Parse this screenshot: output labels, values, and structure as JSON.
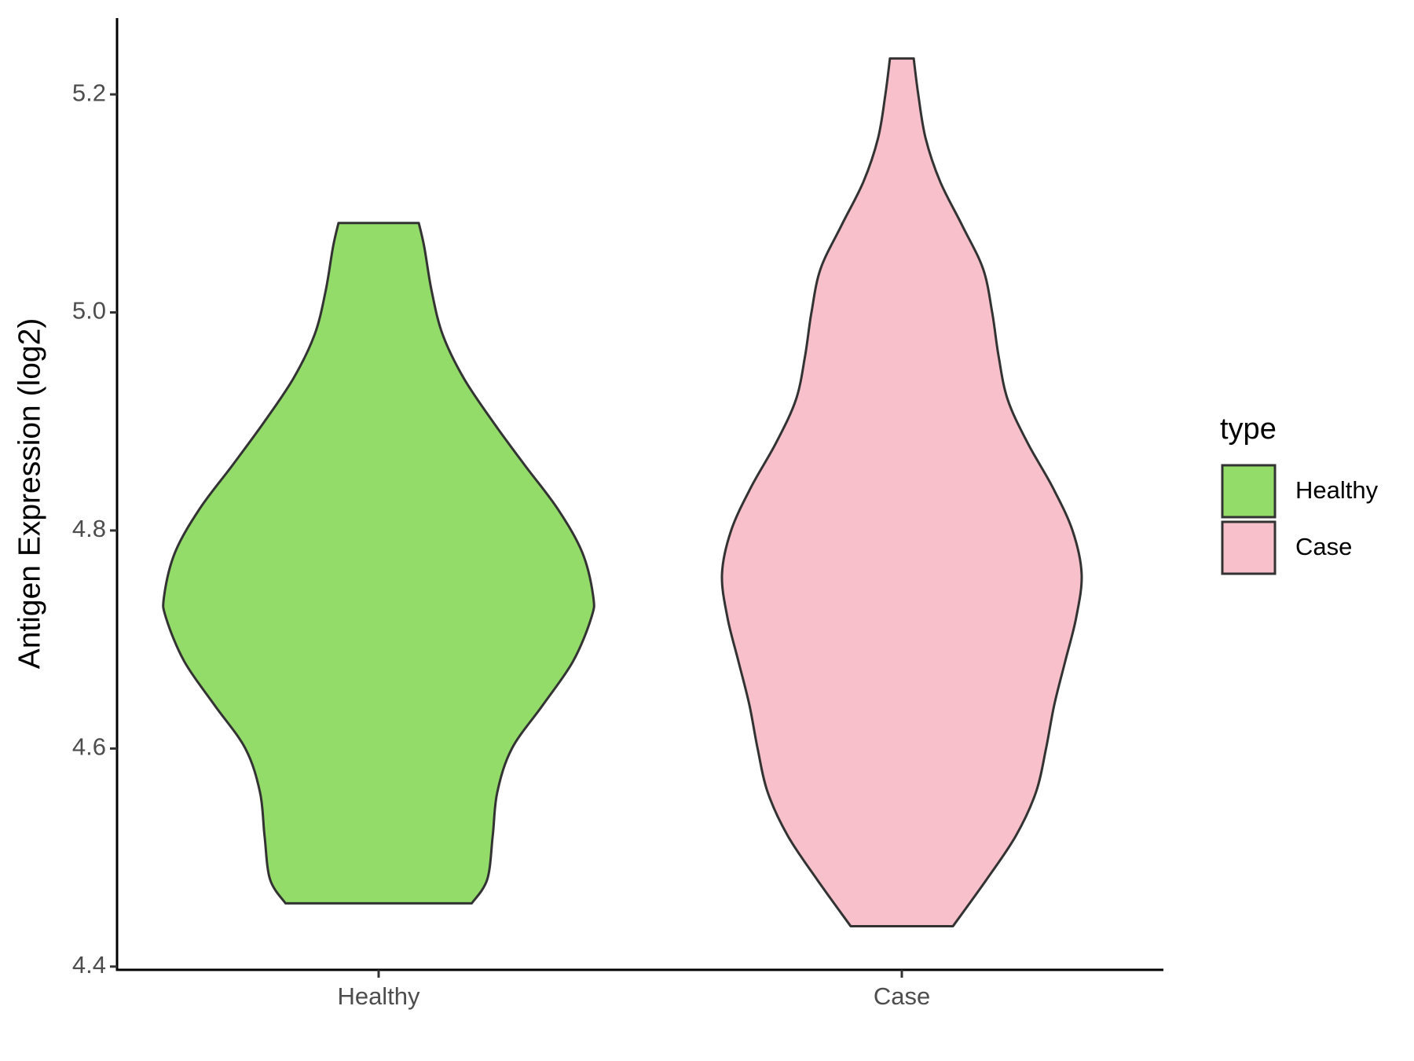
{
  "chart_data": {
    "type": "violin",
    "y_label": "Antigen Expression (log2)",
    "categories": [
      "Healthy",
      "Case"
    ],
    "ylim": [
      4.397,
      5.27
    ],
    "yticks": [
      {
        "value": 4.4,
        "label": "4.4"
      },
      {
        "value": 4.6,
        "label": "4.6"
      },
      {
        "value": 4.8,
        "label": "4.8"
      },
      {
        "value": 5.0,
        "label": "5.0"
      },
      {
        "value": 5.2,
        "label": "5.2"
      }
    ],
    "legend": {
      "title": "type",
      "position": "right"
    },
    "series": [
      {
        "name": "Healthy",
        "color": "#93dc6a",
        "y": [
          4.458,
          4.48,
          4.52,
          4.56,
          4.6,
          4.64,
          4.68,
          4.72,
          4.74,
          4.78,
          4.82,
          4.86,
          4.9,
          4.94,
          4.98,
          5.02,
          5.06,
          5.082
        ],
        "density": [
          102,
          119,
          125,
          130,
          146,
          180,
          213,
          233,
          235,
          223,
          196,
          160,
          125,
          93,
          70,
          58,
          50,
          44
        ]
      },
      {
        "name": "Case",
        "color": "#f8c0cb",
        "y": [
          4.437,
          4.48,
          4.52,
          4.56,
          4.6,
          4.64,
          4.68,
          4.72,
          4.76,
          4.8,
          4.84,
          4.88,
          4.92,
          4.96,
          5.0,
          5.04,
          5.08,
          5.12,
          5.16,
          5.2,
          5.233
        ],
        "density": [
          56,
          93,
          125,
          147,
          158,
          167,
          179,
          191,
          197,
          187,
          165,
          138,
          116,
          106,
          99,
          89,
          66,
          42,
          26,
          18,
          13
        ]
      }
    ]
  }
}
